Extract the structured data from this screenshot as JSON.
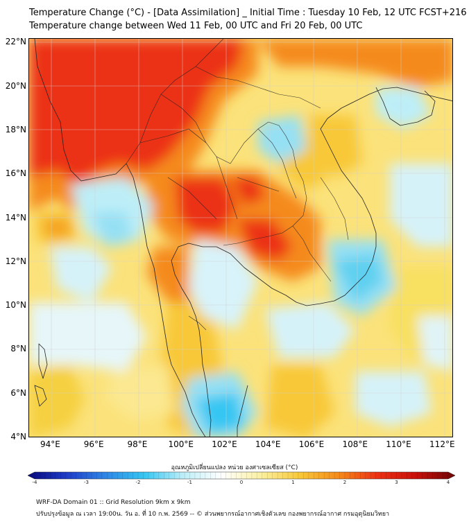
{
  "header": {
    "title_line1": "Temperature Change (°C) - [Data Assimilation] _ Initial Time : Tuesday 10 Feb, 12 UTC FCST+216",
    "title_line2": "Temperature change between Wed 11 Feb, 00 UTC and Fri 20 Feb, 00 UTC"
  },
  "map": {
    "lat_labels": [
      "22°N",
      "20°N",
      "18°N",
      "16°N",
      "14°N",
      "12°N",
      "10°N",
      "8°N",
      "6°N",
      "4°N"
    ],
    "lon_labels": [
      "94°E",
      "96°E",
      "98°E",
      "100°E",
      "102°E",
      "104°E",
      "106°E",
      "108°E",
      "110°E",
      "112°E"
    ],
    "lat_range": [
      4,
      22.2
    ],
    "lon_range": [
      93.0,
      112.5
    ],
    "grid": true,
    "background_color": "#fbe27a"
  },
  "colorbar": {
    "title": "อุณหภูมิเปลี่ยนแปลง หน่วย องศาเซลเซียส (°C)",
    "tick_labels": [
      "-4",
      "-3",
      "-2",
      "-1",
      "0",
      "1",
      "2",
      "3",
      "4"
    ],
    "range": [
      -4,
      4
    ],
    "colors": [
      "#0a0a7a",
      "#1e3cc8",
      "#2f86e6",
      "#35c6f2",
      "#bdeef8",
      "#ffffff",
      "#fbf0a0",
      "#f8c838",
      "#f58a1a",
      "#ec3012",
      "#c8100a",
      "#6e0606"
    ]
  },
  "footer": {
    "line1": "WRF-DA Domain 01 :: Grid Resolution 9km x 9km",
    "line2": "ปรับปรุงข้อมูล ณ เวลา 19:00น. วัน อ. ที่ 10 ก.พ. 2569 -- © ส่วนพยากรณ์อากาศเชิงตัวเลข กองพยากรณ์อากาศ กรมอุตุนิยมวิทยา"
  }
}
